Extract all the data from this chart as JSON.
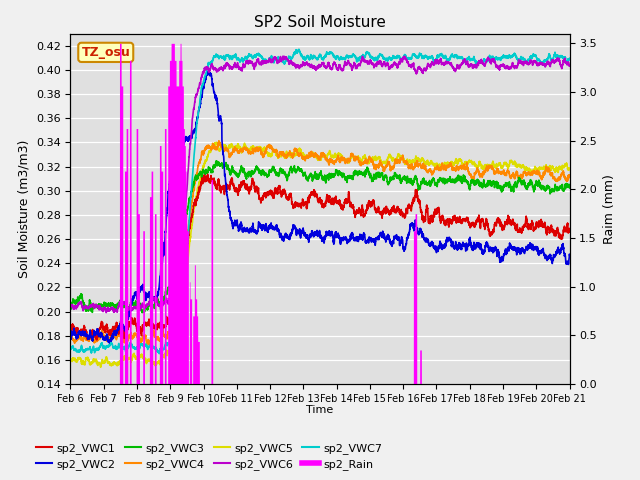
{
  "title": "SP2 Soil Moisture",
  "xlabel": "Time",
  "ylabel_left": "Soil Moisture (m3/m3)",
  "ylabel_right": "Raim (mm)",
  "ylim_left": [
    0.14,
    0.43
  ],
  "ylim_right": [
    0.0,
    3.6
  ],
  "xtick_labels": [
    "Feb 6",
    "Feb 7",
    "Feb 8",
    "Feb 9",
    "Feb 10",
    "Feb 11",
    "Feb 12",
    "Feb 13",
    "Feb 14",
    "Feb 15",
    "Feb 16",
    "Feb 17",
    "Feb 18",
    "Feb 19",
    "Feb 20",
    "Feb 21"
  ],
  "ytick_left": [
    0.14,
    0.16,
    0.18,
    0.2,
    0.22,
    0.24,
    0.26,
    0.28,
    0.3,
    0.32,
    0.34,
    0.36,
    0.38,
    0.4,
    0.42
  ],
  "ytick_right": [
    0.0,
    0.5,
    1.0,
    1.5,
    2.0,
    2.5,
    3.0,
    3.5
  ],
  "bg_color": "#e0e0e0",
  "legend_label": "TZ_osu",
  "series_colors": {
    "sp2_VWC1": "#dd0000",
    "sp2_VWC2": "#0000dd",
    "sp2_VWC3": "#00bb00",
    "sp2_VWC4": "#ff8800",
    "sp2_VWC5": "#dddd00",
    "sp2_VWC6": "#bb00cc",
    "sp2_VWC7": "#00cccc",
    "sp2_Rain": "#ff00ff"
  }
}
